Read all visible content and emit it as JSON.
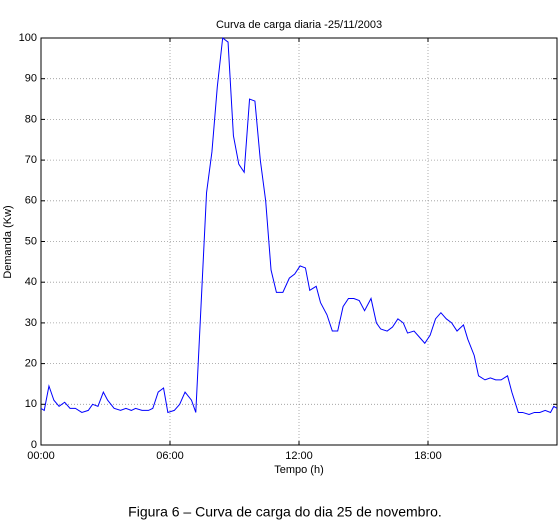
{
  "chart_data": {
    "type": "line",
    "title": "Curva de carga diaria -25/11/2003",
    "xlabel": "Tempo (h)",
    "ylabel": "Demanda (Kw)",
    "caption": "Figura 6 – Curva de carga do dia 25 de novembro.",
    "color": "#0000ff",
    "grid": true,
    "xlim": [
      0,
      24
    ],
    "xticks": [
      {
        "value": 0,
        "label": "00:00"
      },
      {
        "value": 6,
        "label": "06:00"
      },
      {
        "value": 12,
        "label": "12:00"
      },
      {
        "value": 18,
        "label": "18:00"
      }
    ],
    "ylim": [
      0,
      100
    ],
    "yticks": [
      0,
      10,
      20,
      30,
      40,
      50,
      60,
      70,
      80,
      90,
      100
    ],
    "x": [
      0,
      0.15,
      0.37,
      0.6,
      0.84,
      1.1,
      1.35,
      1.6,
      1.9,
      2.2,
      2.4,
      2.65,
      2.9,
      3.1,
      3.4,
      3.7,
      3.95,
      4.2,
      4.4,
      4.7,
      5.0,
      5.2,
      5.45,
      5.7,
      5.9,
      6.2,
      6.45,
      6.7,
      7.0,
      7.2,
      7.45,
      7.7,
      7.95,
      8.2,
      8.45,
      8.7,
      8.95,
      9.2,
      9.45,
      9.7,
      9.95,
      10.2,
      10.45,
      10.7,
      10.95,
      11.25,
      11.55,
      11.8,
      12.05,
      12.3,
      12.5,
      12.8,
      13.0,
      13.3,
      13.55,
      13.8,
      14.05,
      14.3,
      14.55,
      14.8,
      15.05,
      15.35,
      15.6,
      15.8,
      16.1,
      16.35,
      16.6,
      16.85,
      17.05,
      17.35,
      17.6,
      17.85,
      18.1,
      18.35,
      18.6,
      18.85,
      19.1,
      19.35,
      19.65,
      19.85,
      20.15,
      20.35,
      20.65,
      20.9,
      21.15,
      21.4,
      21.7,
      21.9,
      22.2,
      22.4,
      22.7,
      22.95,
      23.2,
      23.45,
      23.7,
      23.85,
      24
    ],
    "values": [
      9,
      8.5,
      14.5,
      11,
      9.5,
      10.5,
      9,
      9,
      8,
      8.5,
      10,
      9.5,
      13,
      11,
      9,
      8.5,
      9,
      8.5,
      9,
      8.5,
      8.5,
      9,
      13,
      14,
      8,
      8.5,
      10,
      13,
      11,
      8,
      35,
      62,
      72,
      88,
      100,
      99,
      76,
      69,
      67,
      85,
      84.5,
      70,
      60,
      43,
      37.5,
      37.5,
      41,
      42,
      44,
      43.5,
      38,
      39,
      35,
      32,
      28,
      28,
      34,
      36,
      36,
      35.5,
      33,
      36,
      30,
      28.5,
      28,
      29,
      31,
      30,
      27.5,
      28,
      26.5,
      25,
      27,
      31,
      32.5,
      31,
      30,
      28,
      29.5,
      26,
      22,
      17,
      16,
      16.5,
      16,
      16,
      17,
      13,
      8,
      8,
      7.5,
      8,
      8,
      8.5,
      8,
      9.5,
      9
    ]
  }
}
